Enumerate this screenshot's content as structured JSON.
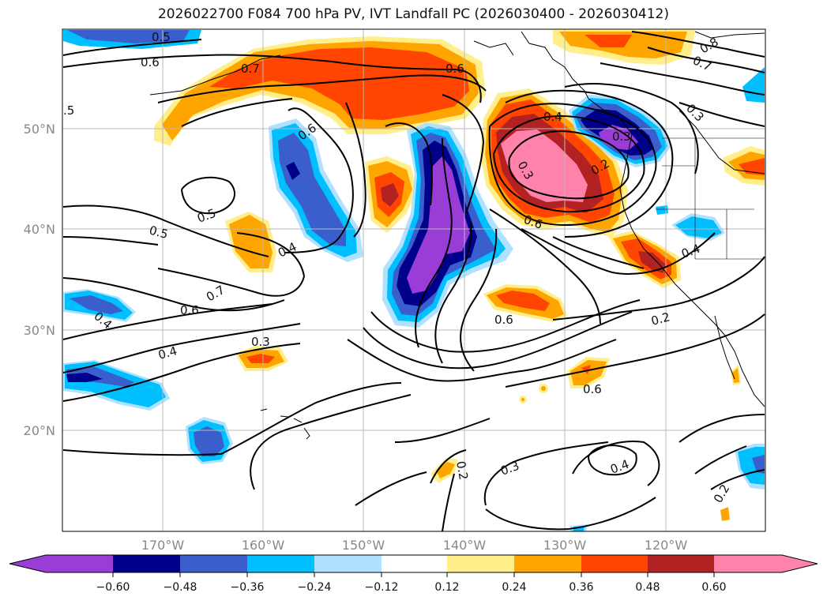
{
  "title": "2026022700 F084 700 hPa PV, IVT Landfall PC (2026030400 - 2026030412)",
  "colors": {
    "n060": "#9a3cd6",
    "n048": "#00008b",
    "n036": "#3a5fcd",
    "n024": "#00bfff",
    "n012": "#b0e2ff",
    "p012": "#ffee8a",
    "p024": "#ffa500",
    "p036": "#ff4500",
    "p048": "#b22222",
    "p060": "#ff82ab",
    "grid": "#b8b8b8",
    "contour": "#000000"
  },
  "map": {
    "lat_ticks": [
      "50°N",
      "40°N",
      "30°N",
      "20°N"
    ],
    "lon_ticks": [
      "170°W",
      "160°W",
      "150°W",
      "140°W",
      "130°W",
      "120°W"
    ]
  },
  "contour_labels": [
    "0.5",
    "0.6",
    "0.7",
    "0.6",
    ".5",
    "0.6",
    "0.4",
    "0.3",
    "0.8",
    "0.7",
    "0.3",
    "0.2",
    "0.3",
    "0.6",
    "0.5",
    "0.5",
    "0.4",
    "0.4",
    "0.6",
    "0.7",
    "0.6",
    "0.4",
    "0.3",
    "0.4",
    "0.2",
    "0.6",
    "0.3",
    "0.2",
    "0.4",
    "0.2"
  ],
  "colorbar": {
    "ticks": [
      "−0.60",
      "−0.48",
      "−0.36",
      "−0.24",
      "−0.12",
      "0.12",
      "0.24",
      "0.36",
      "0.48",
      "0.60"
    ]
  }
}
